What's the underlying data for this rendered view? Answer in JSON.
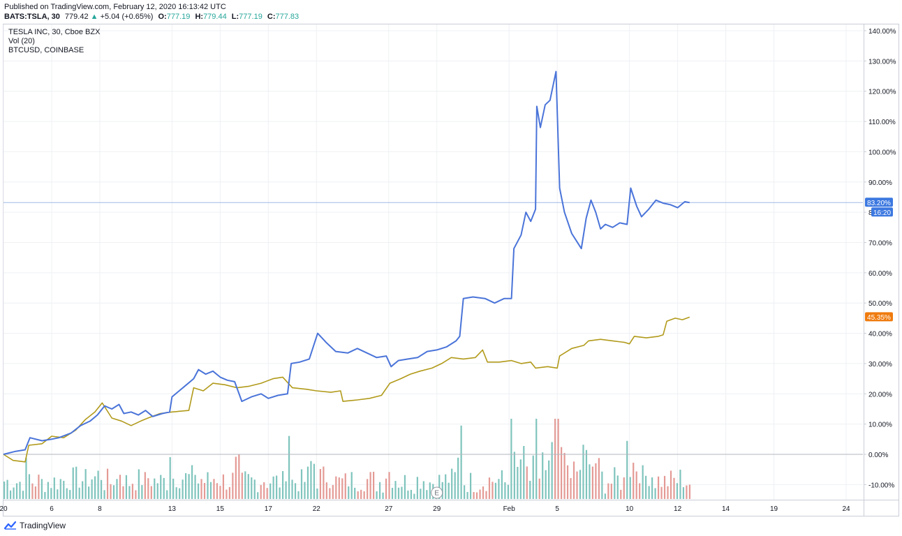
{
  "header": {
    "published": "Published on TradingView.com, February 12, 2020 16:13:42 UTC",
    "symbol": "BATS:TSLA, 30",
    "price": "779.42",
    "change_icon": "up-triangle-icon",
    "change": "+5.04 (+0.65%)",
    "o_label": "O:",
    "o_value": "777.19",
    "h_label": "H:",
    "h_value": "779.44",
    "l_label": "L:",
    "l_value": "777.19",
    "c_label": "C:",
    "c_value": "777.83"
  },
  "legend": {
    "main": "TESLA INC, 30, Cboe BZX",
    "volume": "Vol (20)",
    "compare": "BTCUSD, COINBASE"
  },
  "footer": {
    "brand": "TradingView",
    "brand_icon": "tradingview-logo-icon"
  },
  "colors": {
    "tsla": "#4a74d9",
    "btc": "#b19a1a",
    "vol_up": "#7fc4bd",
    "vol_down": "#e49a95",
    "badge_tsla": "#3c78e0",
    "badge_btc": "#ef7b0e",
    "grid": "#eef0f4"
  },
  "chart_data": {
    "type": "line",
    "title": "TESLA INC, 30, Cboe BZX",
    "xlabel": "",
    "ylabel": "",
    "y_unit": "%",
    "ylim": [
      -15,
      142
    ],
    "y_ticks": [
      140,
      130,
      120,
      110,
      100,
      90,
      80,
      70,
      60,
      50,
      40,
      30,
      20,
      10,
      0,
      -10
    ],
    "y_tick_labels": [
      "140.00%",
      "130.00%",
      "120.00%",
      "110.00%",
      "100.00%",
      "90.00%",
      "80.00%",
      "70.00%",
      "60.00%",
      "50.00%",
      "40.00%",
      "30.00%",
      "20.00%",
      "10.00%",
      "0.00%",
      "-10.00%"
    ],
    "x_range": [
      0,
      35.5
    ],
    "x_ticks": [
      {
        "t": 0,
        "label": "20"
      },
      {
        "t": 2,
        "label": "6"
      },
      {
        "t": 4,
        "label": "8"
      },
      {
        "t": 7,
        "label": "13"
      },
      {
        "t": 9,
        "label": "15"
      },
      {
        "t": 11,
        "label": "17"
      },
      {
        "t": 13,
        "label": "22"
      },
      {
        "t": 16,
        "label": "27"
      },
      {
        "t": 18,
        "label": "29"
      },
      {
        "t": 21,
        "label": "Feb"
      },
      {
        "t": 23,
        "label": "5"
      },
      {
        "t": 26,
        "label": "10"
      },
      {
        "t": 28,
        "label": "12"
      },
      {
        "t": 30,
        "label": "14"
      },
      {
        "t": 32,
        "label": "19"
      },
      {
        "t": 35,
        "label": "24"
      }
    ],
    "earnings_marker": {
      "t": 18,
      "label": "E"
    },
    "current_line": 83.2,
    "series": [
      {
        "name": "TESLA INC, 30, Cboe BZX",
        "color": "#4a74d9",
        "badge": "83.20%",
        "badge_sub": "16:20",
        "points": [
          [
            0,
            0
          ],
          [
            0.5,
            1
          ],
          [
            0.9,
            1.5
          ],
          [
            1.1,
            5.5
          ],
          [
            1.6,
            4.5
          ],
          [
            2,
            5
          ],
          [
            2.3,
            5.5
          ],
          [
            2.8,
            7
          ],
          [
            3.2,
            9.5
          ],
          [
            3.6,
            11
          ],
          [
            3.9,
            13
          ],
          [
            4.2,
            16
          ],
          [
            4.5,
            15
          ],
          [
            4.8,
            16.5
          ],
          [
            5,
            13.5
          ],
          [
            5.3,
            14
          ],
          [
            5.6,
            13
          ],
          [
            5.9,
            14.5
          ],
          [
            6.2,
            12.5
          ],
          [
            6.6,
            13.5
          ],
          [
            6.9,
            14
          ],
          [
            7,
            19
          ],
          [
            7.3,
            21
          ],
          [
            7.6,
            23
          ],
          [
            7.9,
            25
          ],
          [
            8.1,
            28
          ],
          [
            8.4,
            26.5
          ],
          [
            8.7,
            27.5
          ],
          [
            9,
            25.5
          ],
          [
            9.3,
            24.5
          ],
          [
            9.6,
            24
          ],
          [
            9.9,
            17.5
          ],
          [
            10.3,
            19
          ],
          [
            10.7,
            20
          ],
          [
            11,
            18.5
          ],
          [
            11.4,
            19.5
          ],
          [
            11.8,
            20
          ],
          [
            11.95,
            30
          ],
          [
            12.3,
            30.5
          ],
          [
            12.7,
            31.5
          ],
          [
            13.05,
            40
          ],
          [
            13.4,
            37
          ],
          [
            13.8,
            34
          ],
          [
            14.3,
            33.5
          ],
          [
            14.7,
            35
          ],
          [
            15.1,
            33.5
          ],
          [
            15.5,
            32
          ],
          [
            15.9,
            32.5
          ],
          [
            16.1,
            29
          ],
          [
            16.4,
            31
          ],
          [
            16.8,
            31.5
          ],
          [
            17.2,
            32
          ],
          [
            17.6,
            34
          ],
          [
            18,
            34.5
          ],
          [
            18.4,
            35.5
          ],
          [
            18.8,
            37.5
          ],
          [
            18.95,
            39
          ],
          [
            19.1,
            51.5
          ],
          [
            19.5,
            52
          ],
          [
            20,
            51.5
          ],
          [
            20.4,
            50
          ],
          [
            20.8,
            51.5
          ],
          [
            21.1,
            51.5
          ],
          [
            21.2,
            68
          ],
          [
            21.5,
            72.5
          ],
          [
            21.7,
            80
          ],
          [
            21.9,
            77
          ],
          [
            22.1,
            81
          ],
          [
            22.15,
            115
          ],
          [
            22.3,
            108
          ],
          [
            22.5,
            115.5
          ],
          [
            22.7,
            117
          ],
          [
            22.95,
            126.5
          ],
          [
            23.1,
            88
          ],
          [
            23.3,
            80
          ],
          [
            23.6,
            73
          ],
          [
            23.8,
            70.5
          ],
          [
            24,
            68
          ],
          [
            24.2,
            78
          ],
          [
            24.4,
            84
          ],
          [
            24.6,
            80
          ],
          [
            24.8,
            74.5
          ],
          [
            25,
            76
          ],
          [
            25.3,
            75
          ],
          [
            25.6,
            76.5
          ],
          [
            25.9,
            76
          ],
          [
            26.05,
            88
          ],
          [
            26.3,
            82
          ],
          [
            26.5,
            78.5
          ],
          [
            26.8,
            81
          ],
          [
            27.1,
            84
          ],
          [
            27.4,
            83
          ],
          [
            27.7,
            82.5
          ],
          [
            28,
            81.5
          ],
          [
            28.3,
            83.5
          ],
          [
            28.5,
            83.2
          ]
        ]
      },
      {
        "name": "BTCUSD, COINBASE",
        "color": "#b19a1a",
        "badge": "45.35%",
        "points": [
          [
            0,
            0
          ],
          [
            0.4,
            -2
          ],
          [
            0.9,
            -2.5
          ],
          [
            1.05,
            3
          ],
          [
            1.6,
            3.5
          ],
          [
            2,
            6
          ],
          [
            2.5,
            5.5
          ],
          [
            3,
            8
          ],
          [
            3.4,
            11.5
          ],
          [
            3.8,
            14
          ],
          [
            4.1,
            17
          ],
          [
            4.5,
            12
          ],
          [
            4.9,
            11
          ],
          [
            5.3,
            9.5
          ],
          [
            5.7,
            11
          ],
          [
            6,
            12
          ],
          [
            6.5,
            13.5
          ],
          [
            7,
            14
          ],
          [
            7.7,
            14.5
          ],
          [
            7.9,
            22
          ],
          [
            8.3,
            21
          ],
          [
            8.7,
            23.5
          ],
          [
            9.2,
            23
          ],
          [
            9.7,
            22
          ],
          [
            10.2,
            22.5
          ],
          [
            10.7,
            23.5
          ],
          [
            11.2,
            25
          ],
          [
            11.6,
            25.5
          ],
          [
            12,
            22
          ],
          [
            12.6,
            21.5
          ],
          [
            13,
            21
          ],
          [
            13.6,
            20.5
          ],
          [
            14,
            21
          ],
          [
            14.1,
            17.5
          ],
          [
            14.7,
            18
          ],
          [
            15.2,
            18.5
          ],
          [
            15.7,
            19.5
          ],
          [
            16.05,
            23.5
          ],
          [
            16.5,
            25
          ],
          [
            16.9,
            26.5
          ],
          [
            17.3,
            27.5
          ],
          [
            17.8,
            28.5
          ],
          [
            18.2,
            30
          ],
          [
            18.6,
            32
          ],
          [
            19.1,
            31.5
          ],
          [
            19.6,
            32
          ],
          [
            19.9,
            34.5
          ],
          [
            20.1,
            30.5
          ],
          [
            20.6,
            30.5
          ],
          [
            21.1,
            31
          ],
          [
            21.5,
            30
          ],
          [
            21.9,
            30.5
          ],
          [
            22.1,
            28.5
          ],
          [
            22.6,
            29
          ],
          [
            23,
            28.5
          ],
          [
            23.1,
            32.5
          ],
          [
            23.6,
            35
          ],
          [
            24.1,
            36
          ],
          [
            24.3,
            37.5
          ],
          [
            24.8,
            38
          ],
          [
            25.3,
            37.5
          ],
          [
            25.8,
            37
          ],
          [
            26,
            36.5
          ],
          [
            26.2,
            39
          ],
          [
            26.7,
            38.5
          ],
          [
            27.2,
            39
          ],
          [
            27.4,
            39.5
          ],
          [
            27.55,
            44
          ],
          [
            27.9,
            45
          ],
          [
            28.2,
            44.5
          ],
          [
            28.5,
            45.35
          ]
        ]
      }
    ]
  }
}
